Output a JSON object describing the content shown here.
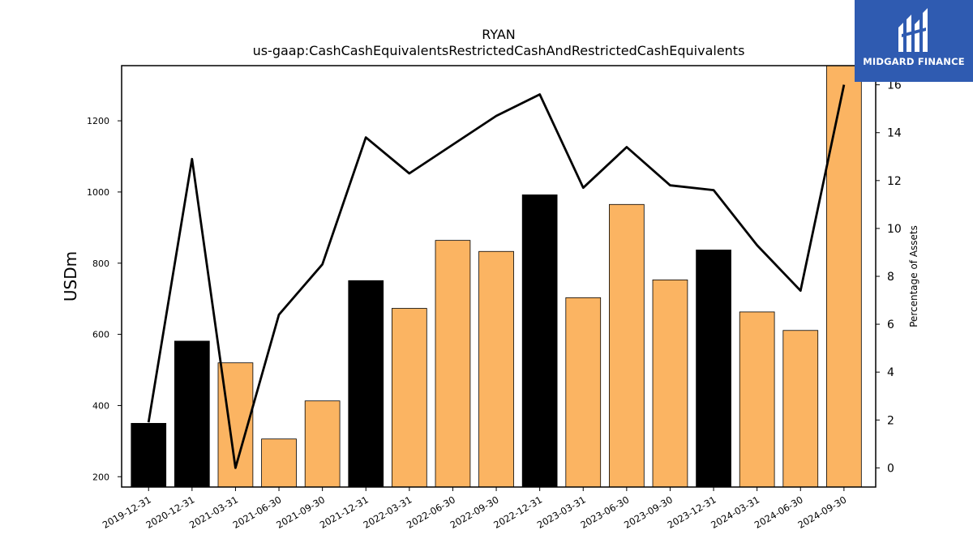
{
  "chart_data": {
    "type": "bar",
    "title": "RYAN",
    "subtitle": "us-gaap:CashCashEquivalentsRestrictedCashAndRestrictedCashEquivalents",
    "ylabel": "USDm",
    "y2label": "Percentage of Assets",
    "ylim": [
      171,
      1355
    ],
    "y2lim": [
      -0.8,
      16.8
    ],
    "yticks": [
      200,
      400,
      600,
      800,
      1000,
      1200
    ],
    "y2ticks": [
      0,
      2,
      4,
      6,
      8,
      10,
      12,
      14,
      16
    ],
    "categories": [
      "2019-12-31",
      "2020-12-31",
      "2021-03-31",
      "2021-06-30",
      "2021-09-30",
      "2021-12-31",
      "2022-03-31",
      "2022-06-30",
      "2022-09-30",
      "2022-12-31",
      "2023-03-31",
      "2023-06-30",
      "2023-09-30",
      "2023-12-31",
      "2024-03-31",
      "2024-06-30",
      "2024-09-30"
    ],
    "series": [
      {
        "type": "bar",
        "values": [
          350,
          581,
          520,
          306,
          413,
          751,
          673,
          864,
          833,
          992,
          703,
          965,
          753,
          837,
          663,
          611,
          1370
        ],
        "colors": [
          "#000000",
          "#000000",
          "#fbb462",
          "#fbb462",
          "#fbb462",
          "#000000",
          "#fbb462",
          "#fbb462",
          "#fbb462",
          "#000000",
          "#fbb462",
          "#fbb462",
          "#fbb462",
          "#000000",
          "#fbb462",
          "#fbb462",
          "#fbb462"
        ]
      },
      {
        "type": "line",
        "axis": "right",
        "color": "#000000",
        "values": [
          1.9,
          12.9,
          0.0,
          6.4,
          8.5,
          13.8,
          12.3,
          13.5,
          14.7,
          15.6,
          11.7,
          13.4,
          11.8,
          11.6,
          9.3,
          7.4,
          16.0
        ]
      }
    ],
    "grid": false,
    "legend": "none"
  },
  "logo": {
    "text": "MIDGARD FINANCE",
    "color": "#2f5bb1"
  }
}
